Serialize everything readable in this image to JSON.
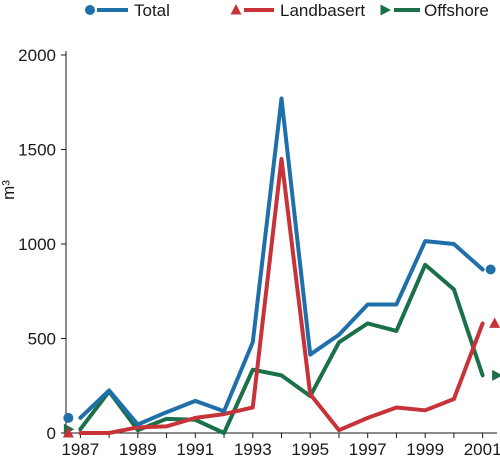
{
  "chart_data": {
    "type": "line",
    "ylabel": "m³",
    "xlabel": "",
    "ylim": [
      0,
      2000
    ],
    "xlim": [
      1986.5,
      2001.5
    ],
    "y_ticks": [
      0,
      500,
      1000,
      1500,
      2000
    ],
    "y_tick_labels": [
      "0",
      "500",
      "1000",
      "1500",
      "2000"
    ],
    "x_tick_labels": [
      "1987",
      "1989",
      "1991",
      "1993",
      "1995",
      "1997",
      "1999",
      "2001"
    ],
    "x_tick_values": [
      1987,
      1989,
      1991,
      1993,
      1995,
      1997,
      1999,
      2001
    ],
    "grid": false,
    "legend_position": "top",
    "x": [
      1987,
      1988,
      1989,
      1990,
      1991,
      1992,
      1993,
      1994,
      1995,
      1996,
      1997,
      1998,
      1999,
      2000,
      2001
    ],
    "series": [
      {
        "name": "Total",
        "color": "#1f6faa",
        "marker": "circle",
        "values": [
          80,
          225,
          45,
          110,
          170,
          115,
          480,
          1770,
          415,
          520,
          680,
          680,
          1015,
          1000,
          865
        ]
      },
      {
        "name": "Landbasert",
        "color": "#c8333a",
        "marker": "triangle-up",
        "values": [
          0,
          0,
          30,
          35,
          80,
          100,
          135,
          1450,
          205,
          15,
          80,
          135,
          120,
          180,
          580
        ]
      },
      {
        "name": "Offshore",
        "color": "#1a7048",
        "marker": "triangle-right",
        "values": [
          20,
          220,
          15,
          75,
          70,
          0,
          335,
          305,
          195,
          480,
          580,
          540,
          890,
          760,
          305
        ]
      }
    ]
  }
}
